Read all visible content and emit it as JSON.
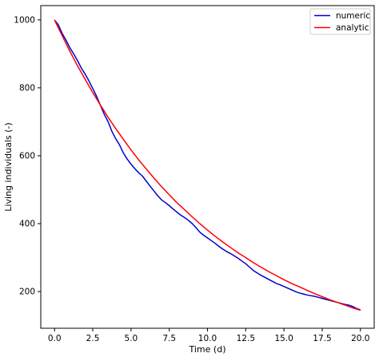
{
  "chart_data": {
    "type": "line",
    "title": "",
    "xlabel": "Time (d)",
    "ylabel": "Living individuals (-)",
    "xlim": [
      -0.9,
      20.9
    ],
    "ylim": [
      92,
      1042
    ],
    "grid": false,
    "legend_placement": "top-right",
    "x_ticks": [
      0.0,
      2.5,
      5.0,
      7.5,
      10.0,
      12.5,
      15.0,
      17.5,
      20.0
    ],
    "x_tick_labels": [
      "0.0",
      "2.5",
      "5.0",
      "7.5",
      "10.0",
      "12.5",
      "15.0",
      "17.5",
      "20.0"
    ],
    "y_ticks": [
      200,
      400,
      600,
      800,
      1000
    ],
    "y_tick_labels": [
      "200",
      "400",
      "600",
      "800",
      "1000"
    ],
    "series": [
      {
        "name": "numeric",
        "color": "#0000cc",
        "x": [
          0.0,
          0.25,
          0.5,
          0.75,
          1.0,
          1.25,
          1.5,
          1.75,
          2.0,
          2.25,
          2.5,
          2.75,
          3.0,
          3.25,
          3.5,
          3.75,
          4.0,
          4.25,
          4.5,
          4.75,
          5.0,
          5.25,
          5.5,
          5.75,
          6.0,
          6.25,
          6.5,
          6.75,
          7.0,
          7.25,
          7.5,
          7.75,
          8.0,
          8.25,
          8.5,
          8.75,
          9.0,
          9.25,
          9.5,
          9.75,
          10.0,
          10.25,
          10.5,
          10.75,
          11.0,
          11.25,
          11.5,
          11.75,
          12.0,
          12.25,
          12.5,
          12.75,
          13.0,
          13.25,
          13.5,
          13.75,
          14.0,
          14.25,
          14.5,
          14.75,
          15.0,
          15.25,
          15.5,
          15.75,
          16.0,
          16.25,
          16.5,
          16.75,
          17.0,
          17.25,
          17.5,
          17.75,
          18.0,
          18.25,
          18.5,
          18.75,
          19.0,
          19.25,
          19.5,
          19.75,
          20.0
        ],
        "values": [
          1000,
          985,
          960,
          940,
          918,
          900,
          880,
          858,
          840,
          820,
          798,
          775,
          748,
          722,
          700,
          672,
          650,
          632,
          608,
          590,
          575,
          562,
          550,
          540,
          525,
          510,
          496,
          482,
          470,
          462,
          453,
          443,
          434,
          425,
          418,
          410,
          400,
          388,
          375,
          366,
          358,
          350,
          342,
          333,
          325,
          318,
          312,
          305,
          298,
          290,
          282,
          272,
          262,
          255,
          248,
          242,
          236,
          230,
          224,
          220,
          215,
          210,
          205,
          200,
          196,
          193,
          190,
          188,
          186,
          183,
          180,
          177,
          174,
          171,
          168,
          165,
          162,
          160,
          156,
          150,
          146
        ]
      },
      {
        "name": "analytic",
        "color": "#ff0000",
        "x": [
          0.0,
          0.5,
          1.0,
          1.5,
          2.0,
          2.5,
          3.0,
          3.5,
          4.0,
          4.5,
          5.0,
          5.5,
          6.0,
          6.5,
          7.0,
          7.5,
          8.0,
          8.5,
          9.0,
          9.5,
          10.0,
          10.5,
          11.0,
          11.5,
          12.0,
          12.5,
          13.0,
          13.5,
          14.0,
          14.5,
          15.0,
          15.5,
          16.0,
          16.5,
          17.0,
          17.5,
          18.0,
          18.5,
          19.0,
          19.5,
          20.0
        ],
        "values": [
          1000,
          953,
          908,
          865,
          825,
          786,
          749,
          713,
          680,
          648,
          617,
          588,
          561,
          534,
          509,
          485,
          462,
          441,
          420,
          400,
          381,
          363,
          346,
          330,
          314,
          300,
          285,
          272,
          259,
          247,
          235,
          224,
          214,
          204,
          194,
          185,
          176,
          168,
          160,
          152,
          145
        ]
      }
    ]
  }
}
